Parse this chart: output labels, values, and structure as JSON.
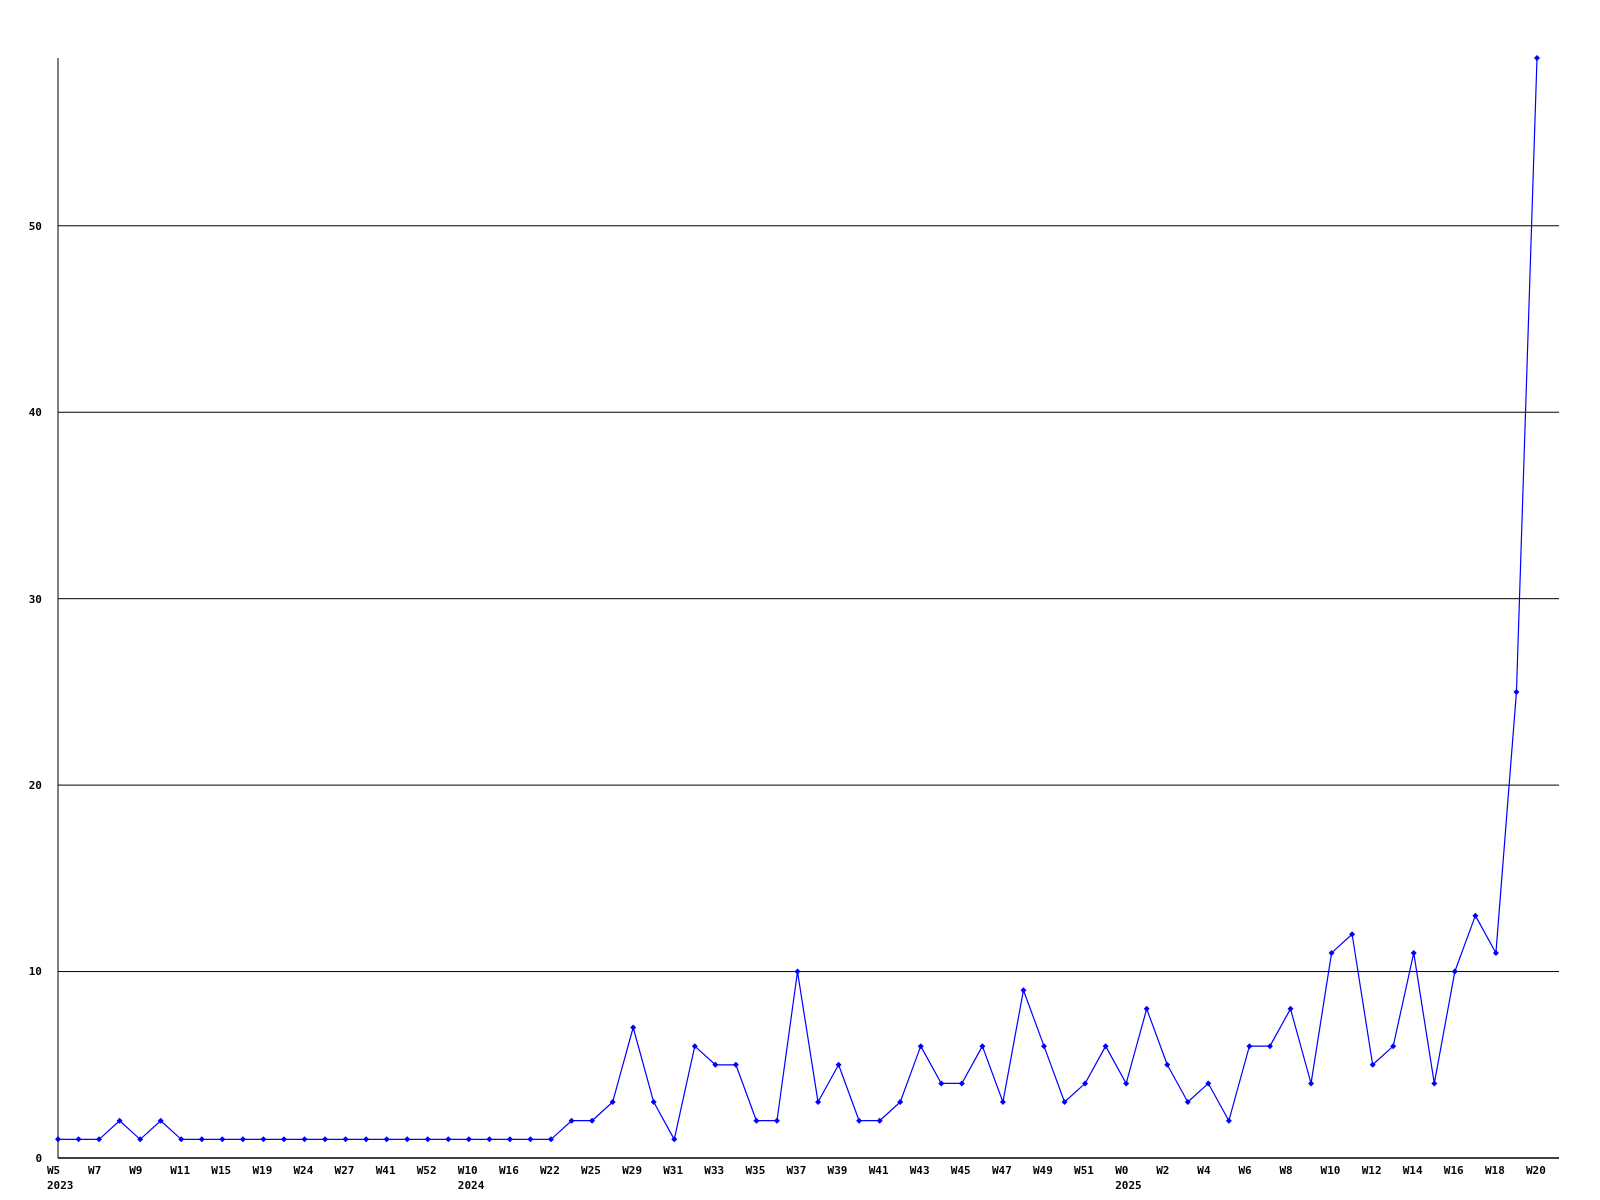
{
  "chart_data": {
    "type": "line",
    "categories": [
      "W5\n2023",
      null,
      "W7",
      null,
      "W9",
      null,
      "W11",
      null,
      "W15",
      null,
      "W19",
      null,
      "W24",
      null,
      "W27",
      null,
      "W41",
      null,
      "W52",
      null,
      "W10\n2024",
      null,
      "W16",
      null,
      "W22",
      null,
      "W25",
      null,
      "W29",
      null,
      "W31",
      null,
      "W33",
      null,
      "W35",
      null,
      "W37",
      null,
      "W39",
      null,
      "W41",
      null,
      "W43",
      null,
      "W45",
      null,
      "W47",
      null,
      "W49",
      null,
      "W51",
      null,
      "W0\n2025",
      null,
      "W2",
      null,
      "W4",
      null,
      "W6",
      null,
      "W8",
      null,
      "W10",
      null,
      "W12",
      null,
      "W14",
      null,
      "W16",
      null,
      "W18",
      null,
      "W20"
    ],
    "series": [
      {
        "color": "#0000ff",
        "values": [
          1,
          1,
          1,
          2,
          1,
          2,
          1,
          1,
          1,
          1,
          1,
          1,
          1,
          1,
          1,
          1,
          1,
          1,
          1,
          1,
          1,
          1,
          1,
          1,
          1,
          2,
          2,
          3,
          7,
          3,
          1,
          6,
          5,
          5,
          2,
          2,
          10,
          3,
          5,
          2,
          2,
          3,
          6,
          4,
          4,
          6,
          3,
          9,
          6,
          3,
          4,
          6,
          4,
          8,
          5,
          3,
          4,
          2,
          6,
          6,
          8,
          4,
          11,
          12,
          5,
          6,
          11,
          4,
          10,
          13,
          11,
          25,
          59
        ]
      }
    ],
    "ylim": [
      0,
      59
    ],
    "yticks": [
      0,
      10,
      20,
      30,
      40,
      50
    ],
    "grid": "y",
    "marker": "diamond",
    "line_style": "solid"
  }
}
